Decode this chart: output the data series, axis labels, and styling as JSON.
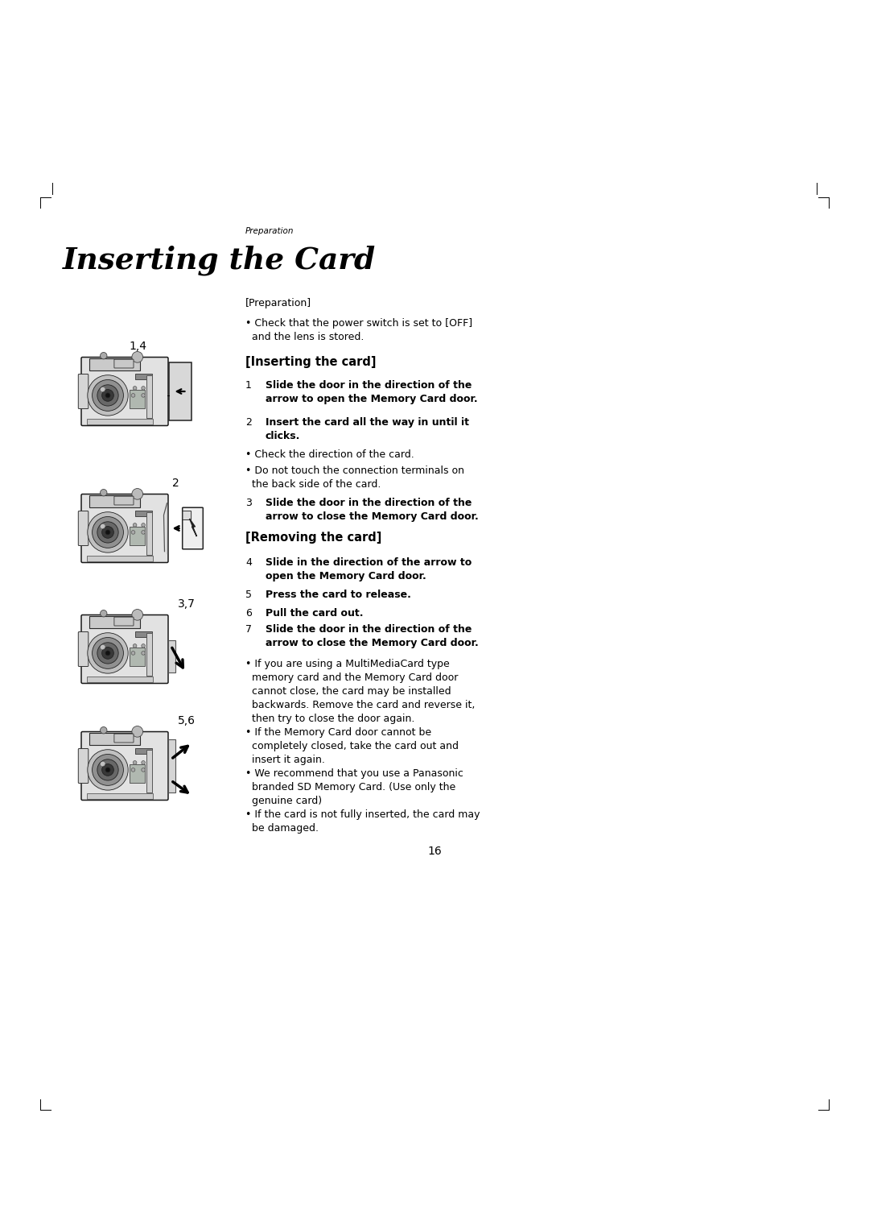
{
  "bg_color": "#ffffff",
  "page_width": 10.8,
  "page_height": 15.26,
  "text_color": "#000000",
  "section_label": "Preparation",
  "title": "Inserting the Card",
  "prep_header": "[Preparation]",
  "prep_bullet": "• Check that the power switch is set to [OFF]\n  and the lens is stored.",
  "inserting_header": "[Inserting the card]",
  "step1_num": "1",
  "step1_text": "Slide the door in the direction of the\narrow to open the Memory Card door.",
  "step2_num": "2",
  "step2_text": "Insert the card all the way in until it\nclicks.",
  "bullet2a": "• Check the direction of the card.",
  "bullet2b": "• Do not touch the connection terminals on\n  the back side of the card.",
  "step3_num": "3",
  "step3_text": "Slide the door in the direction of the\narrow to close the Memory Card door.",
  "removing_header": "[Removing the card]",
  "step4_num": "4",
  "step4_text": "Slide in the direction of the arrow to\nopen the Memory Card door.",
  "step5_num": "5",
  "step5_text": "Press the card to release.",
  "step6_num": "6",
  "step6_text": "Pull the card out.",
  "step7_num": "7",
  "step7_text": "Slide the door in the direction of the\narrow to close the Memory Card door.",
  "bullet_mmc": "• If you are using a MultiMediaCard type\n  memory card and the Memory Card door\n  cannot close, the card may be installed\n  backwards. Remove the card and reverse it,\n  then try to close the door again.\n• If the Memory Card door cannot be\n  completely closed, take the card out and\n  insert it again.\n• We recommend that you use a Panasonic\n  branded SD Memory Card. (Use only the\n  genuine card)\n• If the card is not fully inserted, the card may\n  be damaged.",
  "page_num": "16",
  "img1_label": "1,4",
  "img2_label": "2",
  "img3_label": "3,7",
  "img4_label": "5,6"
}
